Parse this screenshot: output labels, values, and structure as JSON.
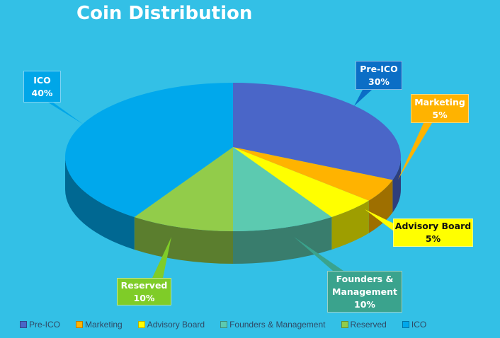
{
  "chart_data": {
    "type": "pie",
    "title": "Coin Distribution",
    "categories": [
      "Pre-ICO",
      "Marketing",
      "Advisory Board",
      "Founders & Management",
      "Reserved",
      "ICO"
    ],
    "values": [
      30,
      5,
      5,
      10,
      10,
      40
    ],
    "data_labels": [
      {
        "name": "Pre-ICO",
        "value": "30%"
      },
      {
        "name": "Marketing",
        "value": "5%"
      },
      {
        "name": "Advisory Board",
        "value": "5%"
      },
      {
        "name": "Founders & Management",
        "value": "10%"
      },
      {
        "name": "Reserved",
        "value": "10%"
      },
      {
        "name": "ICO",
        "value": "40%"
      }
    ],
    "colors": [
      "#4a66c8",
      "#ffb300",
      "#ffff00",
      "#5ccab0",
      "#92cc4a",
      "#00a8ec"
    ],
    "label_box_colors": [
      "#0b6ec6",
      "#ffb300",
      "#ffff00",
      "#3aa38d",
      "#7fcc28",
      "#00a6e8"
    ],
    "legend_position": "bottom",
    "style": "3d"
  }
}
